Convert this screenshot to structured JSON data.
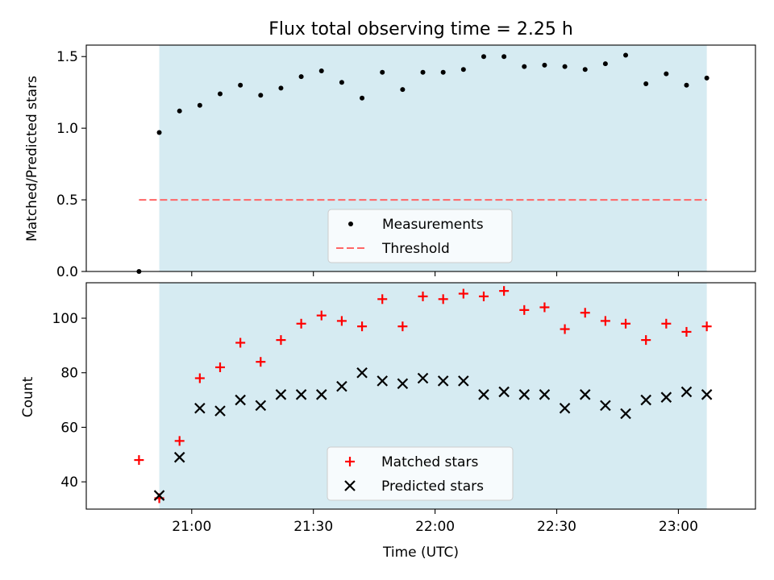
{
  "chart_data": {
    "title": "Flux total observing time = 2.25 h",
    "x_time": [
      "20:47",
      "20:52",
      "20:57",
      "21:02",
      "21:07",
      "21:12",
      "21:17",
      "21:22",
      "21:27",
      "21:32",
      "21:37",
      "21:42",
      "21:47",
      "21:52",
      "21:57",
      "22:02",
      "22:07",
      "22:12",
      "22:17",
      "22:22",
      "22:27",
      "22:32",
      "22:37",
      "22:42",
      "22:47",
      "22:52",
      "22:57",
      "23:02",
      "23:07"
    ],
    "x_minutes": [
      1247,
      1252,
      1257,
      1262,
      1267,
      1272,
      1277,
      1282,
      1287,
      1292,
      1297,
      1302,
      1307,
      1312,
      1317,
      1322,
      1327,
      1332,
      1337,
      1342,
      1347,
      1352,
      1357,
      1362,
      1367,
      1372,
      1377,
      1382,
      1387
    ],
    "xlabel": "Time (UTC)",
    "x_ticks": [
      "21:00",
      "21:30",
      "22:00",
      "22:30",
      "23:00"
    ],
    "shaded_span": [
      "20:52",
      "23:07"
    ],
    "shade_color": "#add8e6",
    "top": {
      "type": "scatter",
      "ylabel": "Matched/Predicted stars",
      "ylim": [
        0,
        1.58
      ],
      "y_ticks": [
        "0.0",
        "0.5",
        "1.0",
        "1.5"
      ],
      "threshold": 0.5,
      "threshold_color": "#ff6666",
      "legend": {
        "placement": "lower-center",
        "entries": [
          "Measurements",
          "Threshold"
        ]
      },
      "series": [
        {
          "name": "Measurements",
          "marker": "dot",
          "color": "#000000",
          "values": [
            0.0,
            0.97,
            1.12,
            1.16,
            1.24,
            1.3,
            1.23,
            1.28,
            1.36,
            1.4,
            1.32,
            1.21,
            1.39,
            1.27,
            1.39,
            1.39,
            1.41,
            1.5,
            1.5,
            1.43,
            1.44,
            1.43,
            1.41,
            1.45,
            1.51,
            1.31,
            1.38,
            1.3,
            1.35
          ]
        }
      ]
    },
    "bottom": {
      "type": "scatter",
      "ylabel": "Count",
      "ylim": [
        30,
        113
      ],
      "y_ticks": [
        "40",
        "60",
        "80",
        "100"
      ],
      "legend": {
        "placement": "lower-center",
        "entries": [
          "Matched stars",
          "Predicted stars"
        ]
      },
      "series": [
        {
          "name": "Matched stars",
          "marker": "plus",
          "color": "#ff0000",
          "values": [
            48,
            34,
            55,
            78,
            82,
            91,
            84,
            92,
            98,
            101,
            99,
            97,
            107,
            97,
            108,
            107,
            109,
            108,
            110,
            103,
            104,
            96,
            102,
            99,
            98,
            92,
            98,
            95,
            97
          ]
        },
        {
          "name": "Predicted stars",
          "marker": "x",
          "color": "#000000",
          "values": [
            null,
            35,
            49,
            67,
            66,
            70,
            68,
            72,
            72,
            72,
            75,
            80,
            77,
            76,
            78,
            77,
            77,
            72,
            73,
            72,
            72,
            67,
            72,
            68,
            65,
            70,
            71,
            73,
            72
          ]
        }
      ]
    }
  }
}
